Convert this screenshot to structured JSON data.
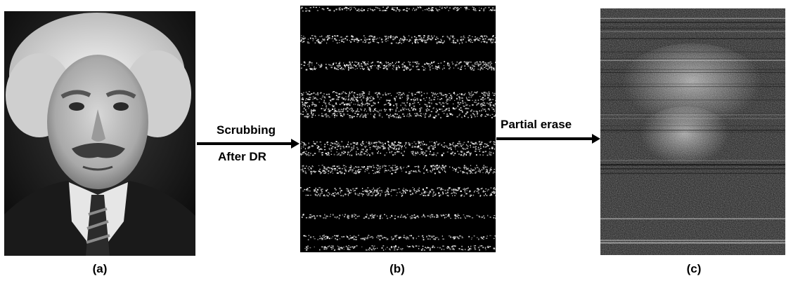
{
  "panels": {
    "a": {
      "caption": "(a)",
      "content": "portrait-photo"
    },
    "b": {
      "caption": "(b)",
      "content": "sparse-noise-bands"
    },
    "c": {
      "caption": "(c)",
      "content": "partially-erased-noisy-image"
    }
  },
  "arrows": {
    "first": {
      "label_top": "Scrubbing",
      "label_bottom": "After DR"
    },
    "second": {
      "label_top": "Partial erase"
    }
  },
  "colors": {
    "arrow": "#000000",
    "background": "#ffffff",
    "panel_b_background": "#000000"
  }
}
